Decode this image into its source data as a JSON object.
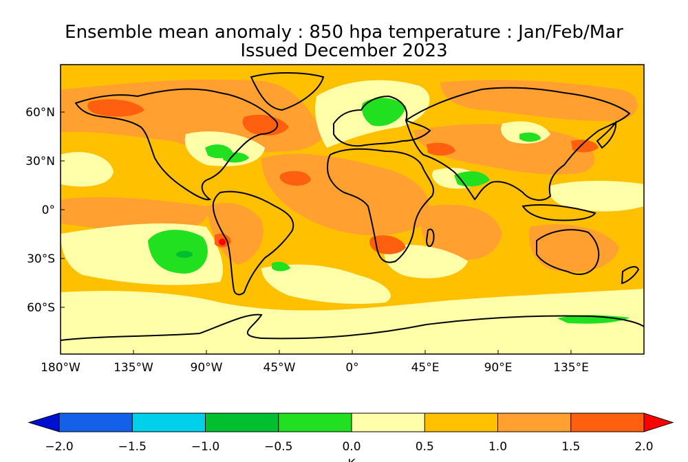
{
  "title": "Ensemble mean anomaly : 850 hpa temperature : Jan/Feb/Mar",
  "subtitle": "Issued December 2023",
  "map": {
    "lat_labels": [
      "60°N",
      "30°N",
      "0°",
      "30°S",
      "60°S"
    ],
    "lon_labels": [
      "180°W",
      "135°W",
      "90°W",
      "45°W",
      "0°",
      "45°E",
      "90°E",
      "135°E"
    ],
    "extent": {
      "lon": [
        -180,
        180
      ],
      "lat": [
        -85,
        85
      ]
    },
    "anomaly_regions": [
      {
        "name": "North Atlantic warm core",
        "lon": -50,
        "lat": 50,
        "band": "1.5 to 2.0"
      },
      {
        "name": "Western US Atlantic cool spot",
        "lon": -70,
        "lat": 32,
        "band": "-1.0 to -0.5"
      },
      {
        "name": "Scandinavia cool",
        "lon": 20,
        "lat": 62,
        "band": "-1.0 to -0.5"
      },
      {
        "name": "South Pacific cool",
        "lon": -100,
        "lat": -25,
        "band": "-0.5 to 0.0"
      },
      {
        "name": "India cool spot",
        "lon": 75,
        "lat": 22,
        "band": "-0.5 to 0.0"
      },
      {
        "name": "Southern Africa warm",
        "lon": 25,
        "lat": -20,
        "band": "1.5 to 2.0"
      },
      {
        "name": "Chile warm",
        "lon": -72,
        "lat": -20,
        "band": "1.5 to 2.0"
      }
    ]
  },
  "colorbar": {
    "unit": "K",
    "tick_labels": [
      "−2.0",
      "−1.5",
      "−1.0",
      "−0.5",
      "0.0",
      "0.5",
      "1.0",
      "1.5",
      "2.0"
    ],
    "bands": [
      {
        "range": "-2.0 to -1.5",
        "color": "#1560e8"
      },
      {
        "range": "-1.5 to -1.0",
        "color": "#00d0ea"
      },
      {
        "range": "-1.0 to -0.5",
        "color": "#00c030"
      },
      {
        "range": "-0.5 to 0.0",
        "color": "#20e020"
      },
      {
        "range": "0.0 to 0.5",
        "color": "#ffffaa"
      },
      {
        "range": "0.5 to 1.0",
        "color": "#ffc000"
      },
      {
        "range": "1.0 to 1.5",
        "color": "#ffa030"
      },
      {
        "range": "1.5 to 2.0",
        "color": "#ff6010"
      }
    ],
    "under_color": "#0010d0",
    "over_color": "#ff0000"
  }
}
